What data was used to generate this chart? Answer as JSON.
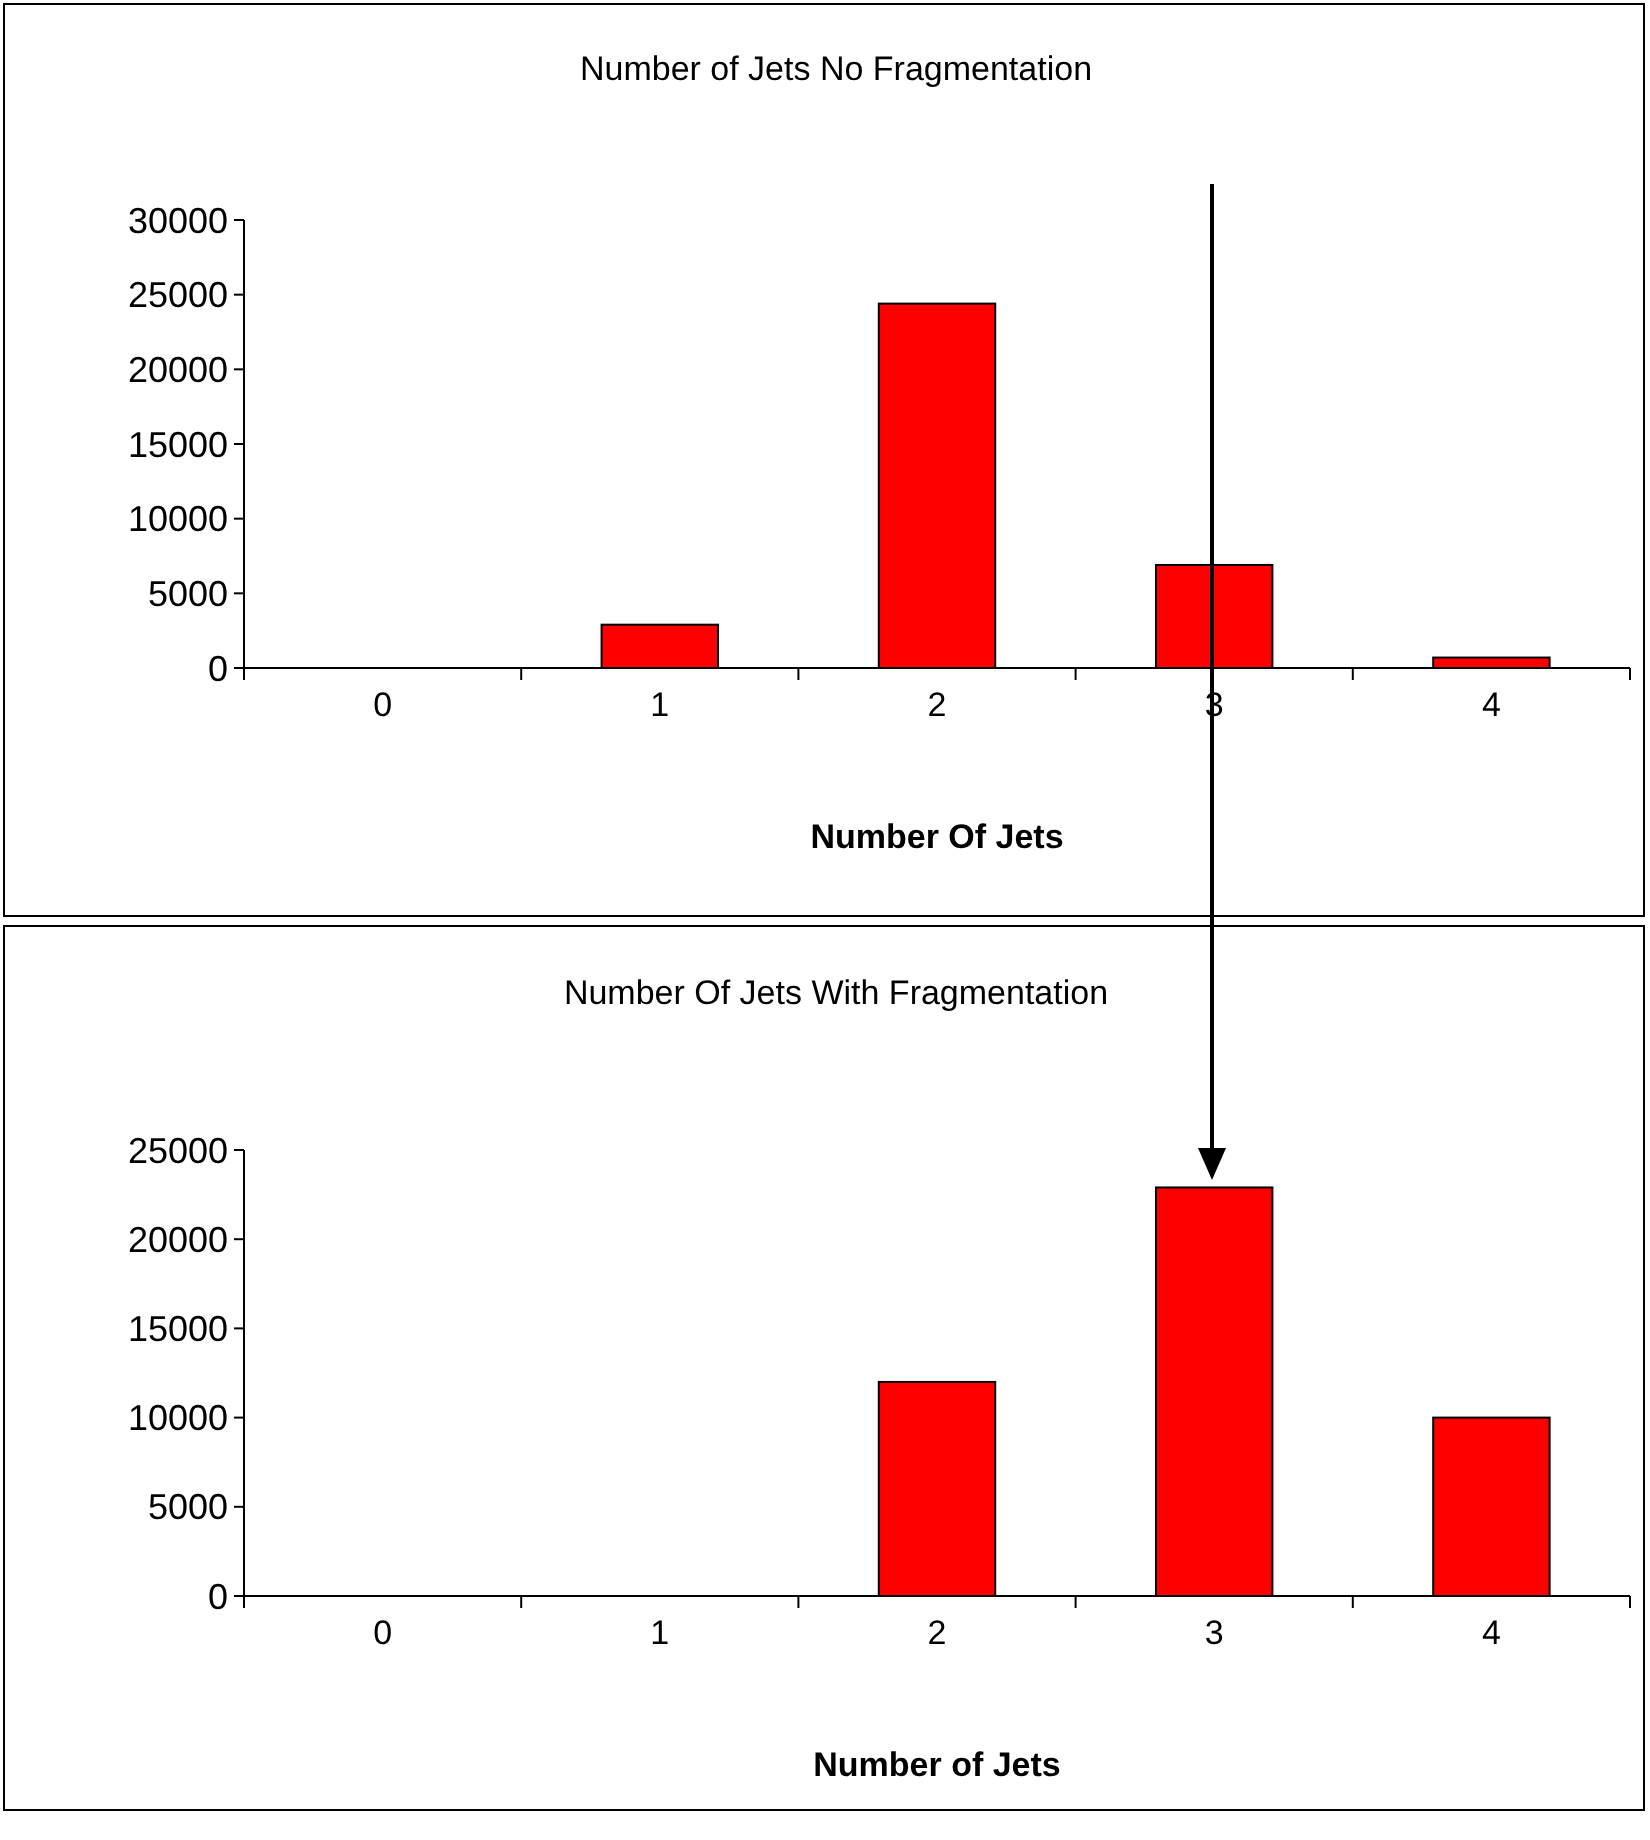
{
  "chart_data": [
    {
      "type": "bar",
      "title": "Number of Jets No Fragmentation",
      "xlabel": "Number Of Jets",
      "categories": [
        "0",
        "1",
        "2",
        "3",
        "4"
      ],
      "values": [
        0,
        2900,
        24400,
        6900,
        700
      ],
      "color": "#ff0000",
      "ylim": [
        0,
        30000
      ],
      "yticks": [
        0,
        5000,
        10000,
        15000,
        20000,
        25000,
        30000
      ]
    },
    {
      "type": "bar",
      "title": "Number Of Jets With Fragmentation",
      "xlabel": "Number of Jets",
      "categories": [
        "0",
        "1",
        "2",
        "3",
        "4"
      ],
      "values": [
        0,
        0,
        12000,
        22900,
        10000
      ],
      "color": "#ff0000",
      "ylim": [
        0,
        25000
      ],
      "yticks": [
        0,
        5000,
        10000,
        15000,
        20000,
        25000
      ]
    }
  ]
}
